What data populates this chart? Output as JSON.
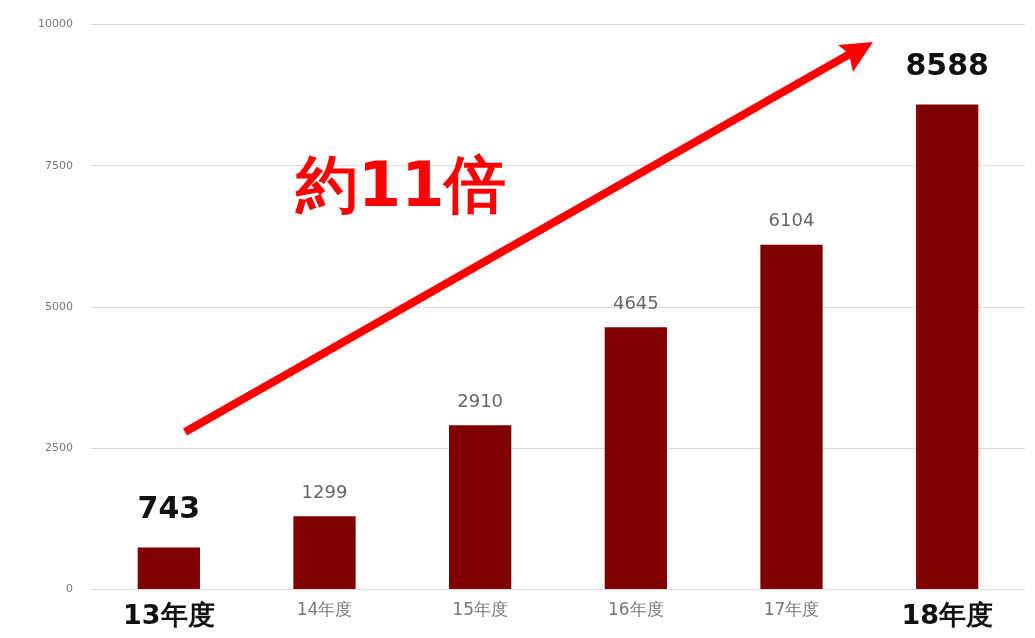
{
  "chart_data": {
    "type": "bar",
    "categories": [
      "13年度",
      "14年度",
      "15年度",
      "16年度",
      "17年度",
      "18年度"
    ],
    "values": [
      743,
      1299,
      2910,
      4645,
      6104,
      8588
    ],
    "color": "#800000",
    "ylim": [
      0,
      10000
    ],
    "yticks": [
      0,
      2500,
      5000,
      7500,
      10000
    ],
    "grid": "y",
    "data_labels": true,
    "annotations": [
      "約11倍"
    ]
  }
}
